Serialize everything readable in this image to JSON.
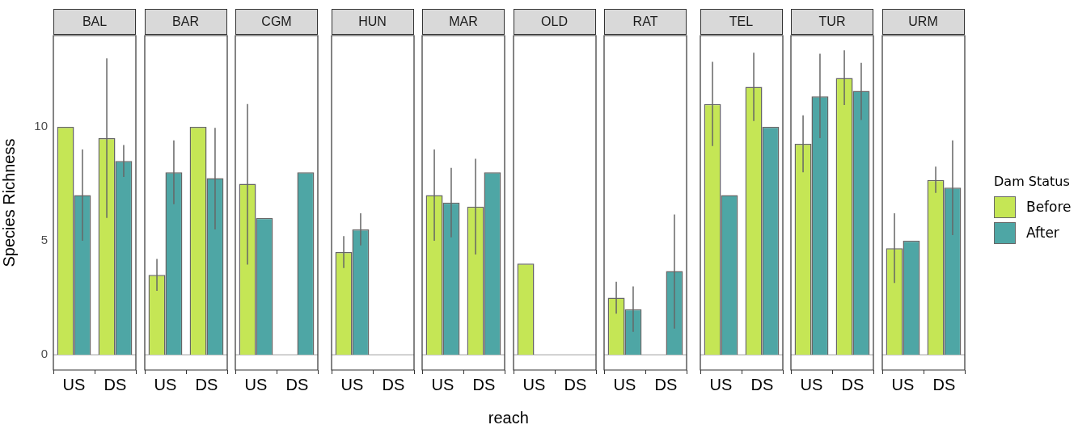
{
  "chart_data": [
    {
      "type": "bar",
      "title": "BAL",
      "ylabel": "Species Richness",
      "legend": "right",
      "legend_title": "Dam Status",
      "categories": [
        "US",
        "DS"
      ],
      "ylim": [
        -0.67,
        14.0
      ],
      "yticks": [
        0,
        5,
        10
      ],
      "ref_lines": [
        {
          "axis": "y",
          "value": 0,
          "color": "#b3b3b3"
        }
      ],
      "series": [
        {
          "name": "Before",
          "color": "#c5e655",
          "values": [
            10,
            9.5
          ],
          "errors": [
            null,
            [
              6,
              13
            ]
          ]
        },
        {
          "name": "After",
          "color": "#4ea6a5",
          "values": [
            7,
            8.5
          ],
          "errors": [
            [
              5,
              9
            ],
            [
              7.8,
              9.2
            ]
          ]
        }
      ]
    },
    {
      "type": "bar",
      "title": "BAR",
      "categories": [
        "US",
        "DS"
      ],
      "ylim": [
        -0.67,
        14.0
      ],
      "yticks": [
        0,
        5,
        10
      ],
      "tick_labels": "x",
      "ref_lines": [
        {
          "axis": "y",
          "value": 0,
          "color": "#b3b3b3"
        }
      ],
      "series": [
        {
          "name": "Before",
          "color": "#c5e655",
          "values": [
            3.5,
            10
          ],
          "errors": [
            [
              2.8,
              4.2
            ],
            null
          ]
        },
        {
          "name": "After",
          "color": "#4ea6a5",
          "values": [
            8,
            7.75
          ],
          "errors": [
            [
              6.6,
              9.4
            ],
            [
              5.5,
              9.95
            ]
          ]
        }
      ]
    },
    {
      "type": "bar",
      "title": "CGM",
      "categories": [
        "US",
        "DS"
      ],
      "ylim": [
        -0.67,
        14.0
      ],
      "yticks": [
        0,
        5,
        10
      ],
      "tick_labels": "x",
      "ref_lines": [
        {
          "axis": "y",
          "value": 0,
          "color": "#b3b3b3"
        }
      ],
      "series": [
        {
          "name": "Before",
          "color": "#c5e655",
          "values": [
            7.5,
            null
          ],
          "errors": [
            [
              3.95,
              11
            ],
            null
          ]
        },
        {
          "name": "After",
          "color": "#4ea6a5",
          "values": [
            6,
            8
          ],
          "errors": [
            null,
            null
          ]
        }
      ]
    },
    {
      "type": "bar",
      "title": "HUN",
      "categories": [
        "US",
        "DS"
      ],
      "ylim": [
        -0.67,
        14.0
      ],
      "yticks": [
        0,
        5,
        10
      ],
      "tick_labels": "x",
      "ref_lines": [
        {
          "axis": "y",
          "value": 0,
          "color": "#b3b3b3"
        }
      ],
      "series": [
        {
          "name": "Before",
          "color": "#c5e655",
          "values": [
            4.5,
            null
          ],
          "errors": [
            [
              3.8,
              5.2
            ],
            null
          ]
        },
        {
          "name": "After",
          "color": "#4ea6a5",
          "values": [
            5.5,
            null
          ],
          "errors": [
            [
              4.8,
              6.2
            ],
            null
          ]
        }
      ]
    },
    {
      "type": "bar",
      "title": "MAR",
      "xlabel": "reach",
      "categories": [
        "US",
        "DS"
      ],
      "ylim": [
        -0.67,
        14.0
      ],
      "yticks": [
        0,
        5,
        10
      ],
      "tick_labels": "x",
      "ref_lines": [
        {
          "axis": "y",
          "value": 0,
          "color": "#b3b3b3"
        }
      ],
      "series": [
        {
          "name": "Before",
          "color": "#c5e655",
          "values": [
            7,
            6.5
          ],
          "errors": [
            [
              5,
              9
            ],
            [
              4.4,
              8.6
            ]
          ]
        },
        {
          "name": "After",
          "color": "#4ea6a5",
          "values": [
            6.67,
            8
          ],
          "errors": [
            [
              5.15,
              8.2
            ],
            null
          ]
        }
      ]
    },
    {
      "type": "bar",
      "title": "OLD",
      "categories": [
        "US",
        "DS"
      ],
      "ylim": [
        -0.67,
        14.0
      ],
      "yticks": [
        0,
        5,
        10
      ],
      "tick_labels": "x",
      "ref_lines": [
        {
          "axis": "y",
          "value": 0,
          "color": "#b3b3b3"
        }
      ],
      "series": [
        {
          "name": "Before",
          "color": "#c5e655",
          "values": [
            4,
            null
          ]
        },
        {
          "name": "After",
          "color": "#4ea6a5",
          "values": [
            null,
            null
          ]
        }
      ]
    },
    {
      "type": "bar",
      "title": "RAT",
      "categories": [
        "US",
        "DS"
      ],
      "ylim": [
        -0.67,
        14.0
      ],
      "yticks": [
        0,
        5,
        10
      ],
      "tick_labels": "x",
      "ref_lines": [
        {
          "axis": "y",
          "value": 0,
          "color": "#b3b3b3"
        }
      ],
      "series": [
        {
          "name": "Before",
          "color": "#c5e655",
          "values": [
            2.5,
            null
          ],
          "errors": [
            [
              1.8,
              3.2
            ],
            null
          ]
        },
        {
          "name": "After",
          "color": "#4ea6a5",
          "values": [
            2,
            3.67
          ],
          "errors": [
            [
              1,
              3
            ],
            [
              1.15,
              6.15
            ]
          ]
        }
      ]
    },
    {
      "type": "bar",
      "title": "TEL",
      "categories": [
        "US",
        "DS"
      ],
      "ylim": [
        -0.67,
        14.0
      ],
      "yticks": [
        0,
        5,
        10
      ],
      "tick_labels": "x",
      "ref_lines": [
        {
          "axis": "y",
          "value": 0,
          "color": "#b3b3b3"
        }
      ],
      "series": [
        {
          "name": "Before",
          "color": "#c5e655",
          "values": [
            11,
            11.75
          ],
          "errors": [
            [
              9.15,
              12.85
            ],
            [
              10.25,
              13.25
            ]
          ]
        },
        {
          "name": "After",
          "color": "#4ea6a5",
          "values": [
            7,
            10
          ],
          "errors": [
            null,
            null
          ]
        }
      ]
    },
    {
      "type": "bar",
      "title": "TUR",
      "categories": [
        "US",
        "DS"
      ],
      "ylim": [
        -0.67,
        14.0
      ],
      "yticks": [
        0,
        5,
        10
      ],
      "tick_labels": "x",
      "ref_lines": [
        {
          "axis": "y",
          "value": 0,
          "color": "#b3b3b3"
        }
      ],
      "series": [
        {
          "name": "Before",
          "color": "#c5e655",
          "values": [
            9.25,
            12.14
          ],
          "errors": [
            [
              8,
              10.5
            ],
            [
              10.95,
              13.35
            ]
          ]
        },
        {
          "name": "After",
          "color": "#4ea6a5",
          "values": [
            11.33,
            11.57
          ],
          "errors": [
            [
              9.5,
              13.2
            ],
            [
              10.3,
              12.8
            ]
          ]
        }
      ]
    },
    {
      "type": "bar",
      "title": "URM",
      "categories": [
        "US",
        "DS"
      ],
      "ylim": [
        -0.67,
        14.0
      ],
      "yticks": [
        0,
        5,
        10
      ],
      "tick_labels": "x",
      "ref_lines": [
        {
          "axis": "y",
          "value": 0,
          "color": "#b3b3b3"
        }
      ],
      "series": [
        {
          "name": "Before",
          "color": "#c5e655",
          "values": [
            4.67,
            7.67
          ],
          "errors": [
            [
              3.15,
              6.2
            ],
            [
              7.1,
              8.25
            ]
          ]
        },
        {
          "name": "After",
          "color": "#4ea6a5",
          "values": [
            5,
            7.33
          ],
          "errors": [
            null,
            [
              5.25,
              9.4
            ]
          ]
        }
      ]
    }
  ]
}
